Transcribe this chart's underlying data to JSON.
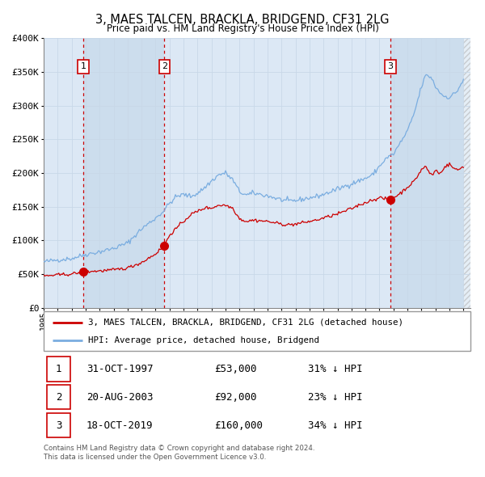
{
  "title": "3, MAES TALCEN, BRACKLA, BRIDGEND, CF31 2LG",
  "subtitle": "Price paid vs. HM Land Registry's House Price Index (HPI)",
  "legend_label_red": "3, MAES TALCEN, BRACKLA, BRIDGEND, CF31 2LG (detached house)",
  "legend_label_blue": "HPI: Average price, detached house, Bridgend",
  "footer_line1": "Contains HM Land Registry data © Crown copyright and database right 2024.",
  "footer_line2": "This data is licensed under the Open Government Licence v3.0.",
  "transactions": [
    {
      "num": 1,
      "date": "31-OCT-1997",
      "price": 53000,
      "hpi_diff": "31% ↓ HPI"
    },
    {
      "num": 2,
      "date": "20-AUG-2003",
      "price": 92000,
      "hpi_diff": "23% ↓ HPI"
    },
    {
      "num": 3,
      "date": "18-OCT-2019",
      "price": 160000,
      "hpi_diff": "34% ↓ HPI"
    }
  ],
  "transaction_dates_decimal": [
    1997.833,
    2003.633,
    2019.789
  ],
  "transaction_prices": [
    53000,
    92000,
    160000
  ],
  "ylim": [
    0,
    400000
  ],
  "yticks": [
    0,
    50000,
    100000,
    150000,
    200000,
    250000,
    300000,
    350000,
    400000
  ],
  "xlim_start": 1995.0,
  "xlim_end": 2025.5,
  "plot_bg_color": "#dce8f5",
  "band_color": "#ccdded",
  "red_color": "#cc0000",
  "blue_color": "#7aade0",
  "vline_color": "#cc0000",
  "grid_color": "#b8cfe0",
  "box_color": "#cc0000",
  "hpi_anchors": {
    "1995.0": 68000,
    "1996.0": 71000,
    "1997.0": 73000,
    "1998.0": 79000,
    "1999.0": 83000,
    "2000.0": 88000,
    "2001.0": 96000,
    "2002.0": 117000,
    "2003.0": 133000,
    "2003.5": 142000,
    "2004.0": 155000,
    "2004.5": 165000,
    "2005.0": 168000,
    "2005.5": 165000,
    "2006.0": 170000,
    "2006.5": 178000,
    "2007.0": 188000,
    "2007.5": 197000,
    "2008.0": 200000,
    "2008.5": 190000,
    "2009.0": 172000,
    "2009.5": 167000,
    "2010.0": 170000,
    "2010.5": 168000,
    "2011.0": 166000,
    "2011.5": 163000,
    "2012.0": 160000,
    "2012.5": 158000,
    "2013.0": 159000,
    "2013.5": 161000,
    "2014.0": 163000,
    "2014.5": 165000,
    "2015.0": 168000,
    "2015.5": 172000,
    "2016.0": 176000,
    "2016.5": 180000,
    "2017.0": 184000,
    "2017.5": 188000,
    "2018.0": 192000,
    "2018.5": 197000,
    "2019.0": 210000,
    "2019.5": 222000,
    "2020.0": 228000,
    "2020.5": 245000,
    "2021.0": 262000,
    "2021.5": 290000,
    "2022.0": 328000,
    "2022.3": 345000,
    "2022.7": 342000,
    "2023.0": 328000,
    "2023.5": 315000,
    "2024.0": 312000,
    "2024.5": 320000,
    "2025.0": 338000
  },
  "red_anchors": {
    "1995.0": 47000,
    "1996.0": 48500,
    "1997.0": 50000,
    "1997.833": 53000,
    "1998.0": 53500,
    "1998.5": 54000,
    "1999.0": 54500,
    "2000.0": 56000,
    "2001.0": 59000,
    "2002.0": 67000,
    "2003.0": 80000,
    "2003.633": 92000,
    "2004.0": 108000,
    "2004.5": 118000,
    "2005.0": 128000,
    "2005.5": 138000,
    "2006.0": 143000,
    "2006.5": 148000,
    "2007.0": 148000,
    "2007.5": 152000,
    "2008.0": 152000,
    "2008.5": 148000,
    "2009.0": 132000,
    "2009.5": 128000,
    "2010.0": 130000,
    "2010.5": 129000,
    "2011.0": 128000,
    "2011.5": 126000,
    "2012.0": 124000,
    "2012.5": 123000,
    "2013.0": 124000,
    "2013.5": 126000,
    "2014.0": 128000,
    "2014.5": 130000,
    "2015.0": 133000,
    "2015.5": 136000,
    "2016.0": 139000,
    "2016.5": 143000,
    "2017.0": 147000,
    "2017.5": 152000,
    "2018.0": 156000,
    "2018.5": 160000,
    "2019.0": 163000,
    "2019.789": 160000,
    "2020.0": 163000,
    "2020.5": 170000,
    "2021.0": 179000,
    "2021.5": 188000,
    "2022.0": 205000,
    "2022.3": 210000,
    "2022.5": 202000,
    "2022.8": 196000,
    "2023.0": 205000,
    "2023.3": 198000,
    "2023.6": 208000,
    "2024.0": 213000,
    "2024.3": 207000,
    "2024.6": 204000,
    "2025.0": 210000
  }
}
